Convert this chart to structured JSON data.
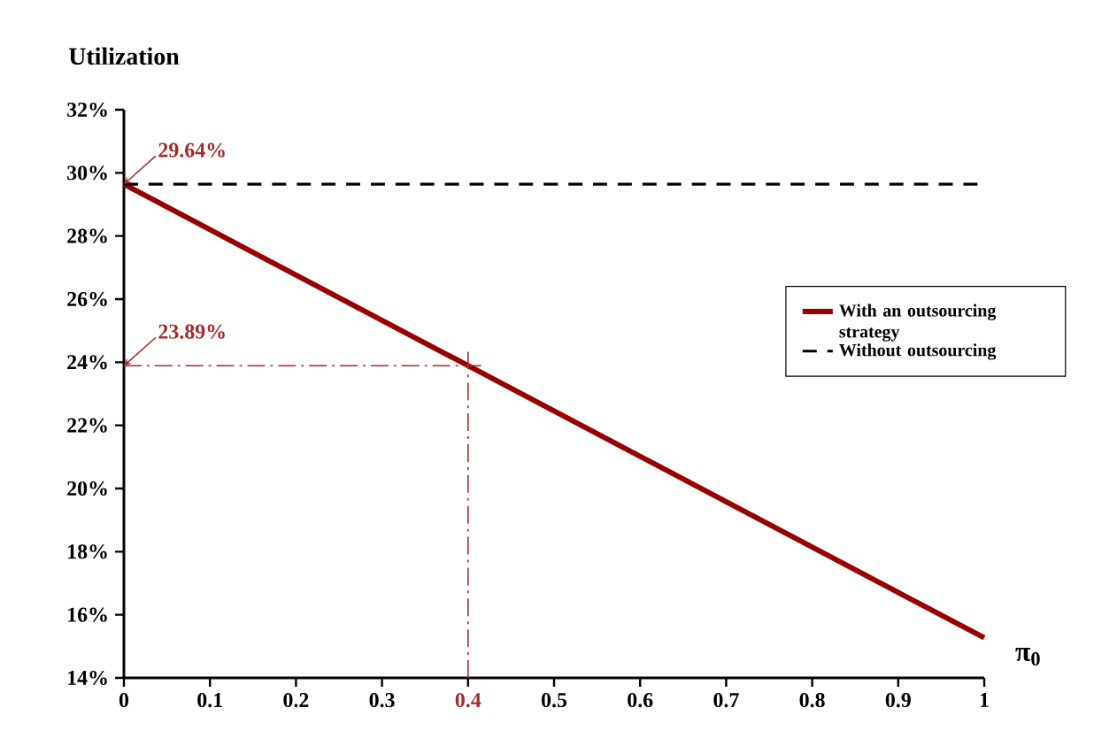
{
  "chart_data": {
    "type": "line",
    "xlabel": "π$_{0}$",
    "ylabel": "Utilization",
    "x": [
      0,
      1
    ],
    "series": [
      {
        "name": "With an outsourcing strategy",
        "color": "#990000",
        "values": [
          29.64,
          15.27
        ],
        "line_style": "solid"
      },
      {
        "name": "Without outsourcing",
        "color": "#000000",
        "values": [
          29.64,
          29.64
        ],
        "line_style": "dashed"
      }
    ],
    "xlim": [
      0,
      1
    ],
    "xticks": [
      0,
      0.1,
      0.2,
      0.3,
      0.4,
      0.5,
      0.6,
      0.7,
      0.8,
      0.9,
      1
    ],
    "ylim": [
      14,
      32
    ],
    "yticks": [
      {
        "value": 14,
        "label": "14%"
      },
      {
        "value": 16,
        "label": "16%"
      },
      {
        "value": 18,
        "label": "18%"
      },
      {
        "value": 20,
        "label": "20%"
      },
      {
        "value": 22,
        "label": "22%"
      },
      {
        "value": 24,
        "label": "24%"
      },
      {
        "value": 26,
        "label": "26%"
      },
      {
        "value": 28,
        "label": "28%"
      },
      {
        "value": 30,
        "label": "30%"
      },
      {
        "value": 32,
        "label": "32%"
      }
    ],
    "ref_lines": [
      {
        "axis": "x",
        "value": 0.4,
        "color": "#a52a2a",
        "line_style": "dashdot"
      },
      {
        "axis": "y",
        "value": 23.89,
        "color": "#a52a2a",
        "line_style": "dashdot"
      }
    ],
    "annotations": [
      {
        "text": "29.64%",
        "x": 0,
        "y": 29.64
      },
      {
        "text": "23.89%",
        "x": 0,
        "y": 23.89
      }
    ],
    "grid": false,
    "legend": "right",
    "marker": "none"
  }
}
